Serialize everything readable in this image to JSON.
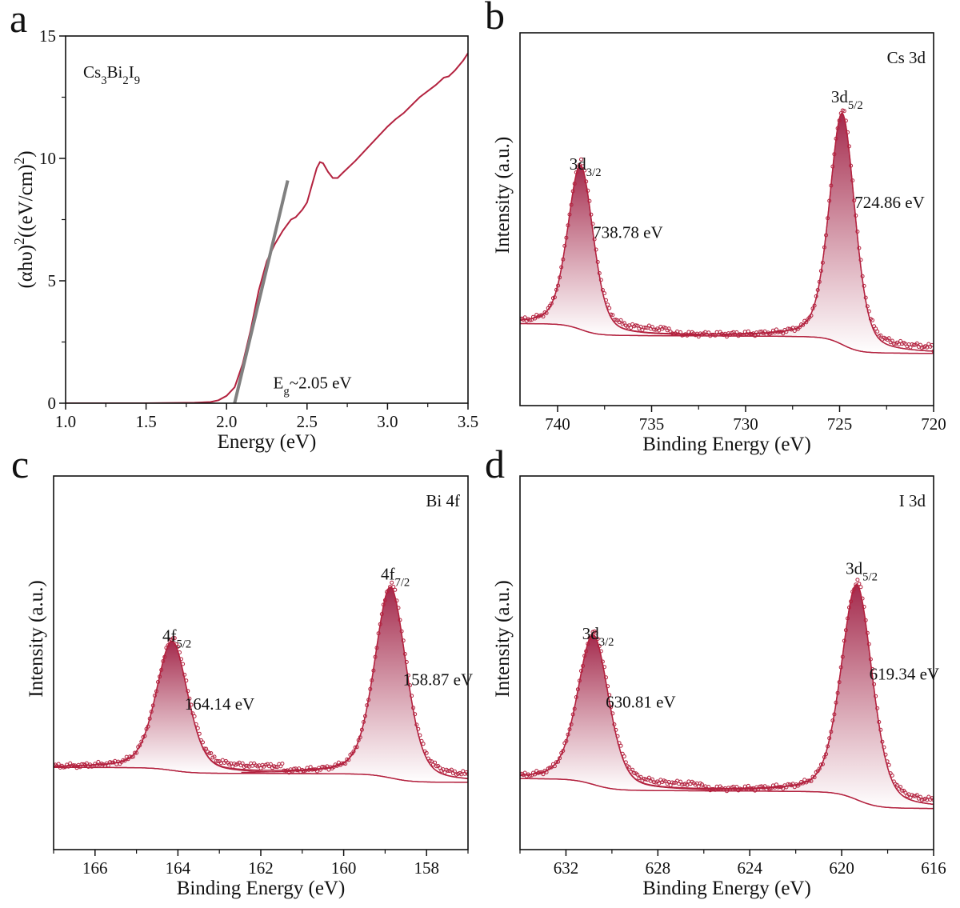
{
  "colors": {
    "curve": "#b3223f",
    "fill_top": "#a42a4c",
    "tangent": "#808080",
    "axis": "#111111"
  },
  "chart_data": [
    {
      "id": "a",
      "panel_letter": "a",
      "type": "line",
      "xlabel": "Energy (eV)",
      "ylabel_parts": [
        {
          "t": "(αhυ)"
        },
        {
          "t": "2",
          "sup": true
        },
        {
          "t": "((eV/cm)"
        },
        {
          "t": "2",
          "sup": true
        },
        {
          "t": ")"
        }
      ],
      "xlim": [
        1.0,
        3.5
      ],
      "ylim": [
        0,
        15
      ],
      "xticks": [
        "1.0",
        "1.5",
        "2.0",
        "2.5",
        "3.0",
        "3.5"
      ],
      "xminor": 0.25,
      "yticks": [
        "0",
        "5",
        "10",
        "15"
      ],
      "yminor": 2.5,
      "annotation_parts": [
        {
          "t": "Cs"
        },
        {
          "t": "3",
          "sub": true
        },
        {
          "t": "Bi"
        },
        {
          "t": "2",
          "sub": true
        },
        {
          "t": "I"
        },
        {
          "t": "9",
          "sub": true
        }
      ],
      "bandgap_label_parts": [
        {
          "t": "E"
        },
        {
          "t": "g",
          "sub": true
        },
        {
          "t": "~2.05 eV"
        }
      ],
      "series": {
        "name": "Tauc plot",
        "x": [
          1.0,
          1.5,
          1.8,
          1.9,
          1.95,
          2.0,
          2.05,
          2.1,
          2.15,
          2.2,
          2.25,
          2.3,
          2.35,
          2.4,
          2.43,
          2.47,
          2.5,
          2.53,
          2.56,
          2.58,
          2.6,
          2.63,
          2.66,
          2.69,
          2.72,
          2.8,
          2.9,
          3.0,
          3.05,
          3.1,
          3.2,
          3.3,
          3.35,
          3.38,
          3.42,
          3.47,
          3.5
        ],
        "y": [
          0,
          0,
          0.02,
          0.05,
          0.12,
          0.3,
          0.65,
          1.6,
          3.0,
          4.6,
          5.8,
          6.5,
          7.05,
          7.5,
          7.6,
          7.9,
          8.2,
          8.9,
          9.6,
          9.85,
          9.8,
          9.45,
          9.2,
          9.2,
          9.4,
          9.9,
          10.6,
          11.3,
          11.6,
          11.85,
          12.5,
          13.0,
          13.3,
          13.35,
          13.6,
          14.0,
          14.3
        ]
      },
      "tangent": {
        "x": [
          2.05,
          2.38
        ],
        "y": [
          0,
          9.1
        ]
      }
    },
    {
      "id": "b",
      "panel_letter": "b",
      "type": "line",
      "xlabel": "Binding Energy (eV)",
      "ylabel": "Intensity (a.u.)",
      "xlim": [
        742,
        720
      ],
      "ylim": [
        0,
        1
      ],
      "xticks": [
        "740",
        "735",
        "730",
        "725",
        "720"
      ],
      "xminor": 2.5,
      "annotation": "Cs 3d",
      "background": {
        "high_be": 0.22,
        "low_be": 0.14
      },
      "peaks": [
        {
          "name_parts": [
            {
              "t": "3d"
            },
            {
              "t": "3/2",
              "sub": true
            }
          ],
          "energy_label": "738.78 eV",
          "position": 738.78,
          "height": 0.44,
          "fwhm": 1.6
        },
        {
          "name_parts": [
            {
              "t": "3d"
            },
            {
              "t": "5/2",
              "sub": true
            }
          ],
          "energy_label": "724.86 eV",
          "position": 724.86,
          "height": 0.62,
          "fwhm": 1.6
        }
      ]
    },
    {
      "id": "c",
      "panel_letter": "c",
      "type": "line",
      "xlabel": "Binding Energy (eV)",
      "ylabel": "Intensity (a.u.)",
      "xlim": [
        167,
        157
      ],
      "ylim": [
        0,
        1
      ],
      "xticks": [
        "166",
        "164",
        "162",
        "160",
        "158"
      ],
      "xminor": 1,
      "annotation": "Bi 4f",
      "background": {
        "high_be": 0.22,
        "low_be": 0.18
      },
      "peaks": [
        {
          "name_parts": [
            {
              "t": "4f"
            },
            {
              "t": "5/2",
              "sub": true
            }
          ],
          "energy_label": "164.14 eV",
          "position": 164.14,
          "height": 0.345,
          "fwhm": 0.9
        },
        {
          "name_parts": [
            {
              "t": "4f"
            },
            {
              "t": "7/2",
              "sub": true
            }
          ],
          "energy_label": "158.87 eV",
          "position": 158.87,
          "height": 0.51,
          "fwhm": 0.9
        }
      ]
    },
    {
      "id": "d",
      "panel_letter": "d",
      "type": "line",
      "xlabel": "Binding Energy (eV)",
      "ylabel": "Intensity (a.u.)",
      "xlim": [
        634,
        616
      ],
      "ylim": [
        0,
        1
      ],
      "xticks": [
        "632",
        "628",
        "624",
        "620",
        "616"
      ],
      "xminor": 2,
      "annotation": "I 3d",
      "background": {
        "high_be": 0.19,
        "low_be": 0.11
      },
      "peaks": [
        {
          "name_parts": [
            {
              "t": "3d"
            },
            {
              "t": "3/2",
              "sub": true
            }
          ],
          "energy_label": "630.81 eV",
          "position": 630.81,
          "height": 0.4,
          "fwhm": 1.6
        },
        {
          "name_parts": [
            {
              "t": "3d"
            },
            {
              "t": "5/2",
              "sub": true
            }
          ],
          "energy_label": "619.34 eV",
          "position": 619.34,
          "height": 0.575,
          "fwhm": 1.6
        }
      ]
    }
  ]
}
